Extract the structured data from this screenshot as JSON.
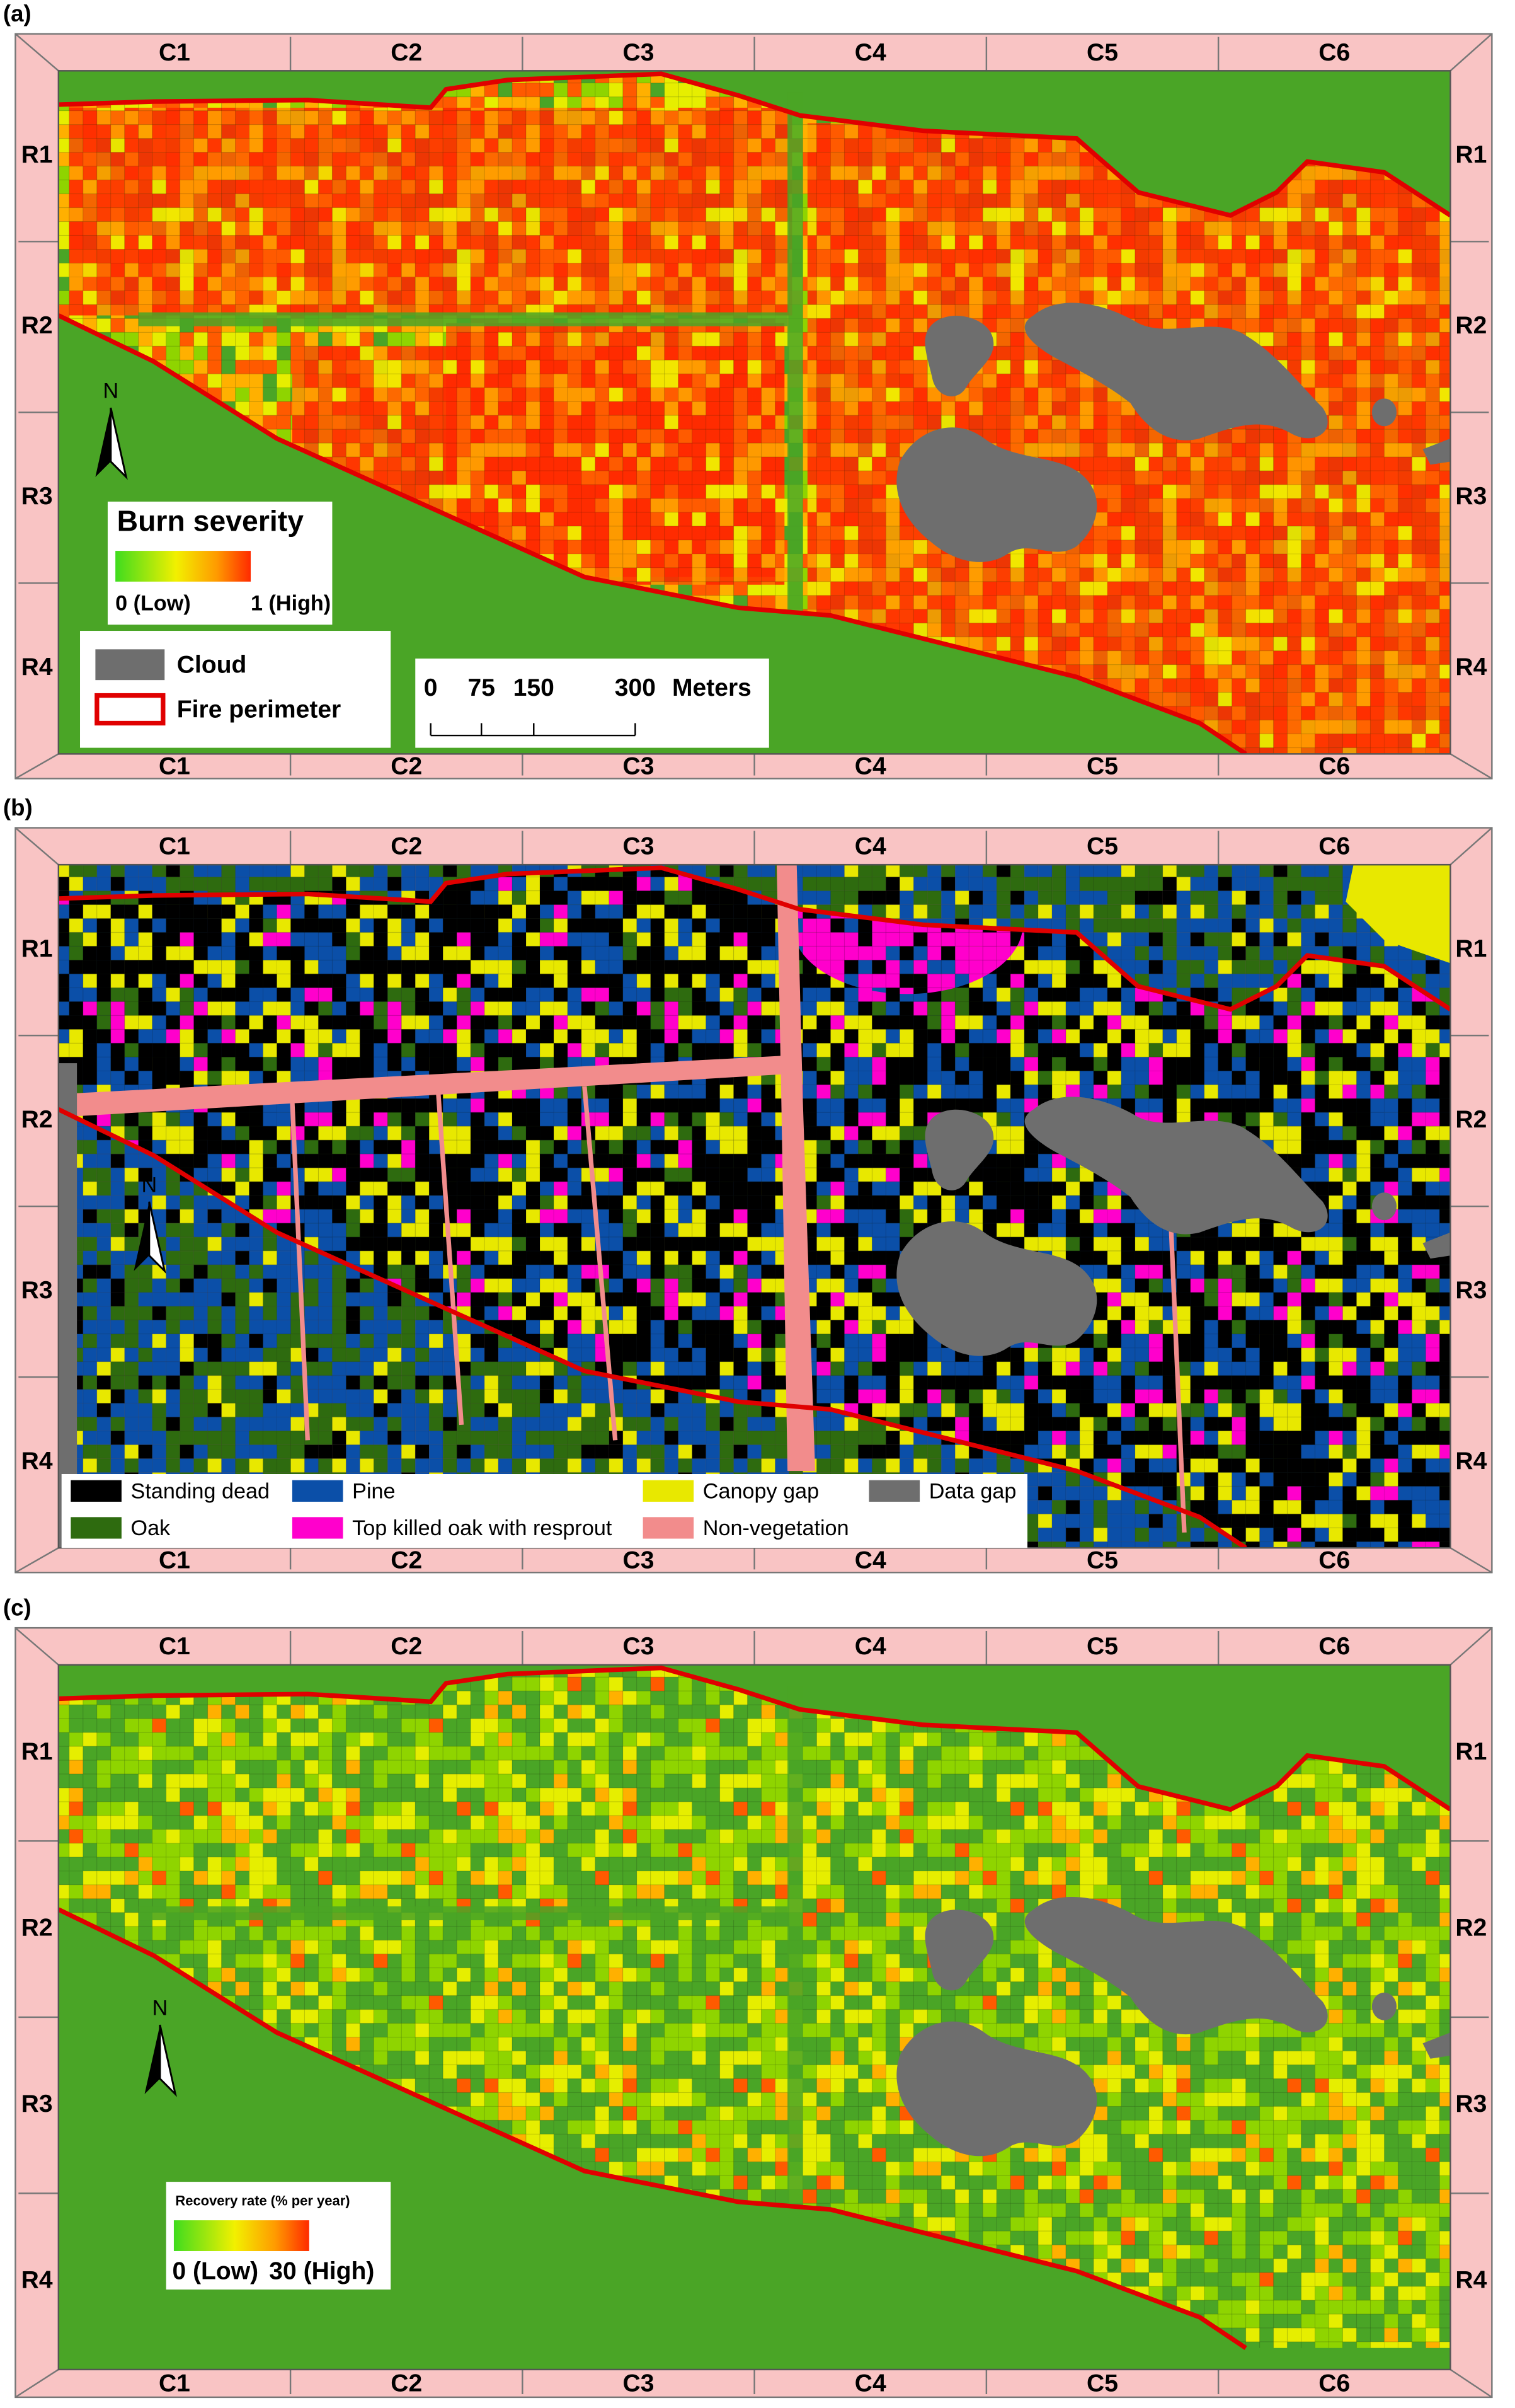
{
  "panels": [
    {
      "label": "(a)",
      "columns": [
        "C1",
        "C2",
        "C3",
        "C4",
        "C5",
        "C6"
      ],
      "rows": [
        "R1",
        "R2",
        "R3",
        "R4"
      ],
      "north": "N",
      "legend": {
        "title": "Burn severity",
        "low": "0 (Low)",
        "high": "1 (High)",
        "items": [
          {
            "label": "Cloud",
            "color": "#6e6e6e"
          },
          {
            "label": "Fire perimeter",
            "color": "#e00000"
          }
        ],
        "scale": {
          "ticks": [
            "0",
            "75",
            "150",
            "300"
          ],
          "unit": "Meters"
        }
      }
    },
    {
      "label": "(b)",
      "columns": [
        "C1",
        "C2",
        "C3",
        "C4",
        "C5",
        "C6"
      ],
      "rows": [
        "R1",
        "R2",
        "R3",
        "R4"
      ],
      "north": "N",
      "legend": {
        "items": [
          {
            "label": "Standing dead",
            "color": "#000000"
          },
          {
            "label": "Pine",
            "color": "#0b4fa8"
          },
          {
            "label": "Canopy gap",
            "color": "#e8e800"
          },
          {
            "label": "Data gap",
            "color": "#6e6e6e"
          },
          {
            "label": "Oak",
            "color": "#2e6b0f"
          },
          {
            "label": "Top killed oak with resprout",
            "color": "#ff00cc"
          },
          {
            "label": "Non-vegetation",
            "color": "#f28c8c"
          }
        ]
      }
    },
    {
      "label": "(c)",
      "columns": [
        "C1",
        "C2",
        "C3",
        "C4",
        "C5",
        "C6"
      ],
      "rows": [
        "R1",
        "R2",
        "R3",
        "R4"
      ],
      "north": "N",
      "legend": {
        "title": "Recovery rate (% per year)",
        "low": "0 (Low)",
        "high": "30 (High)"
      }
    }
  ]
}
